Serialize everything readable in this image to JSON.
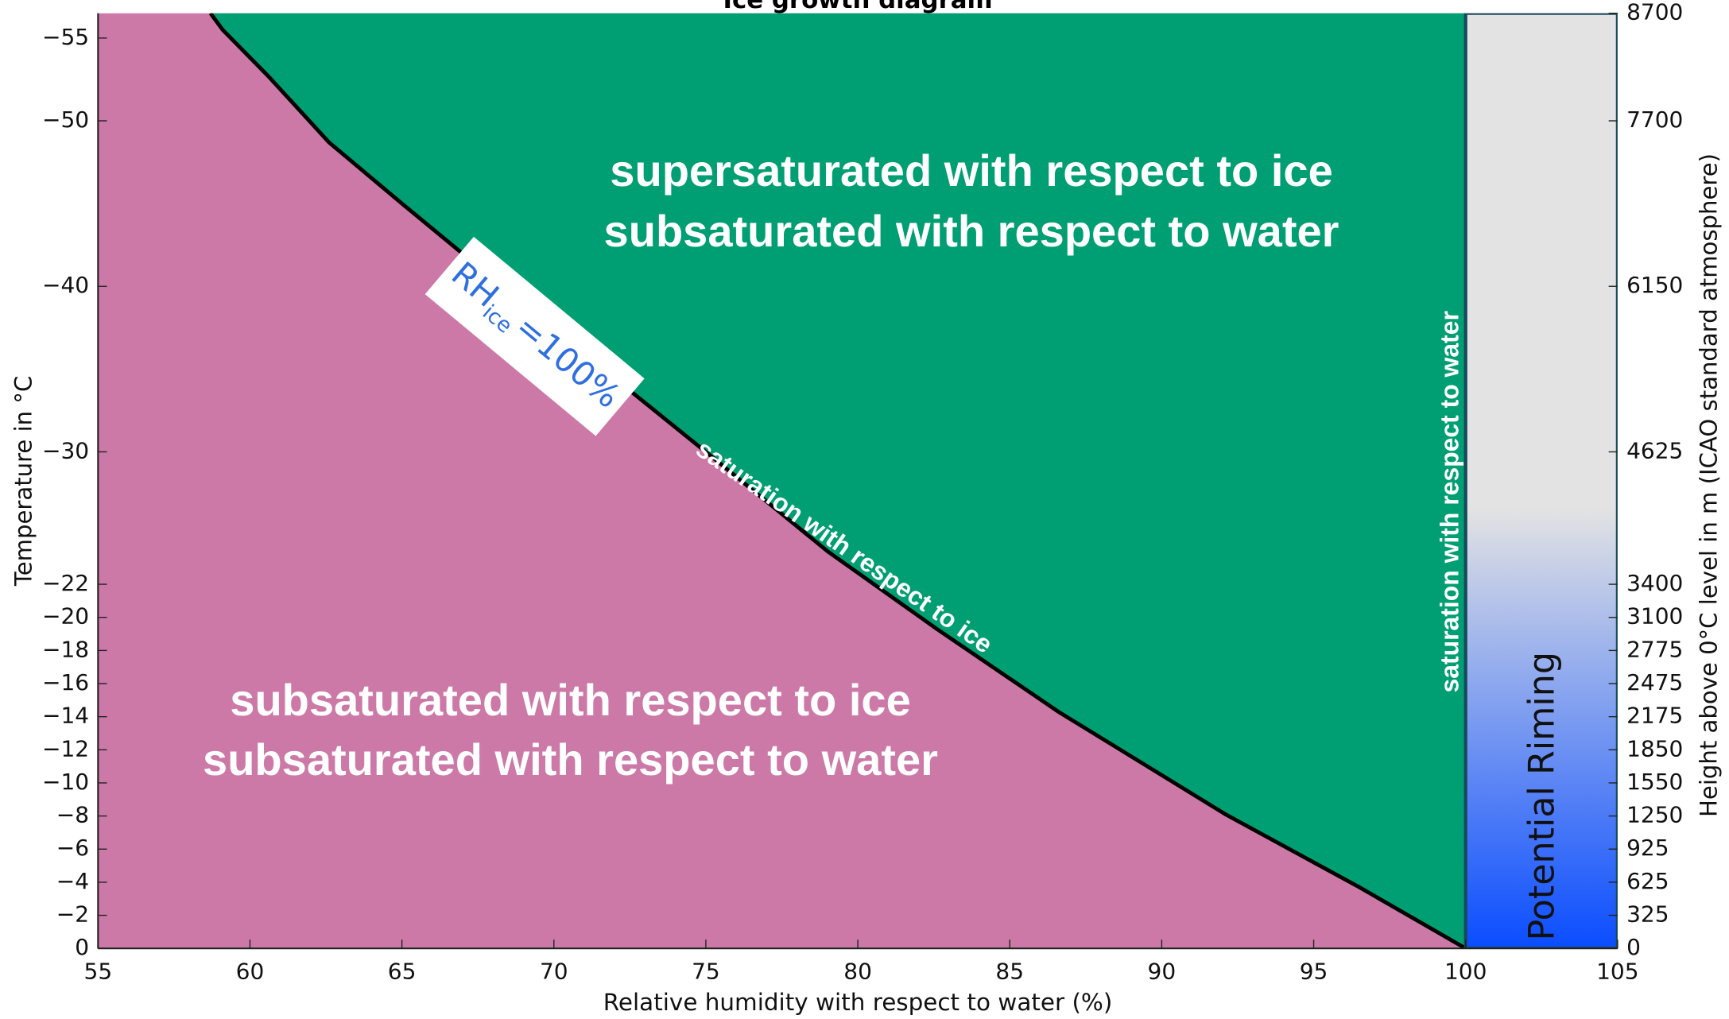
{
  "chart_data": {
    "type": "area",
    "title": "Ice growth diagram",
    "xlabel": "Relative humidity with respect to water (%)",
    "ylabel": "Temperature in °C",
    "y2label": "Height above 0°C level in m (ICAO standard atmosphere)",
    "xlim": [
      55,
      105
    ],
    "xticks": [
      55,
      60,
      65,
      70,
      75,
      80,
      85,
      90,
      95,
      100,
      105
    ],
    "ylim": [
      0,
      -56.5
    ],
    "yticks": [
      0,
      -2,
      -4,
      -6,
      -8,
      -10,
      -12,
      -14,
      -16,
      -18,
      -20,
      -22,
      -30,
      -40,
      -50,
      -55
    ],
    "y2ticks": [
      {
        "value": 0,
        "label": "0"
      },
      {
        "value": -2,
        "label": "325"
      },
      {
        "value": -4,
        "label": "625"
      },
      {
        "value": -6,
        "label": "925"
      },
      {
        "value": -8,
        "label": "1250"
      },
      {
        "value": -10,
        "label": "1550"
      },
      {
        "value": -12,
        "label": "1850"
      },
      {
        "value": -14,
        "label": "2175"
      },
      {
        "value": -16,
        "label": "2475"
      },
      {
        "value": -18,
        "label": "2775"
      },
      {
        "value": -20,
        "label": "3100"
      },
      {
        "value": -22,
        "label": "3400"
      },
      {
        "value": -30,
        "label": "4625"
      },
      {
        "value": -40,
        "label": "6150"
      },
      {
        "value": -50,
        "label": "7700"
      },
      {
        "value": -56.5,
        "label": "8700"
      }
    ],
    "curve": {
      "x": [
        58.7,
        59.1,
        60.6,
        62.6,
        65.0,
        68.3,
        72.3,
        75.2,
        79.0,
        82.6,
        86.6,
        92.1,
        96.5,
        100
      ],
      "y": [
        -56.5,
        -55.5,
        -52.7,
        -48.7,
        -45.0,
        -40.0,
        -34.0,
        -29.7,
        -24.0,
        -19.3,
        -14.3,
        -8.1,
        -3.7,
        0
      ],
      "color": "#000000"
    },
    "below_color": "#cc79a7",
    "above_color": "#009e73",
    "riming_colors": [
      "#e3e3e3",
      "#0a4dff"
    ],
    "labels": {
      "above": [
        "supersaturated with respect to ice",
        "subsaturated with respect to water"
      ],
      "below": [
        "subsaturated with respect to ice",
        "subsaturated with respect to water"
      ],
      "ice_line": "saturation with respect to ice",
      "water_line": "saturation with respect to water",
      "riming": "Potential Riming",
      "rh_main": "RH",
      "rh_sub": "ice",
      "rh_rest": "=100%"
    }
  }
}
